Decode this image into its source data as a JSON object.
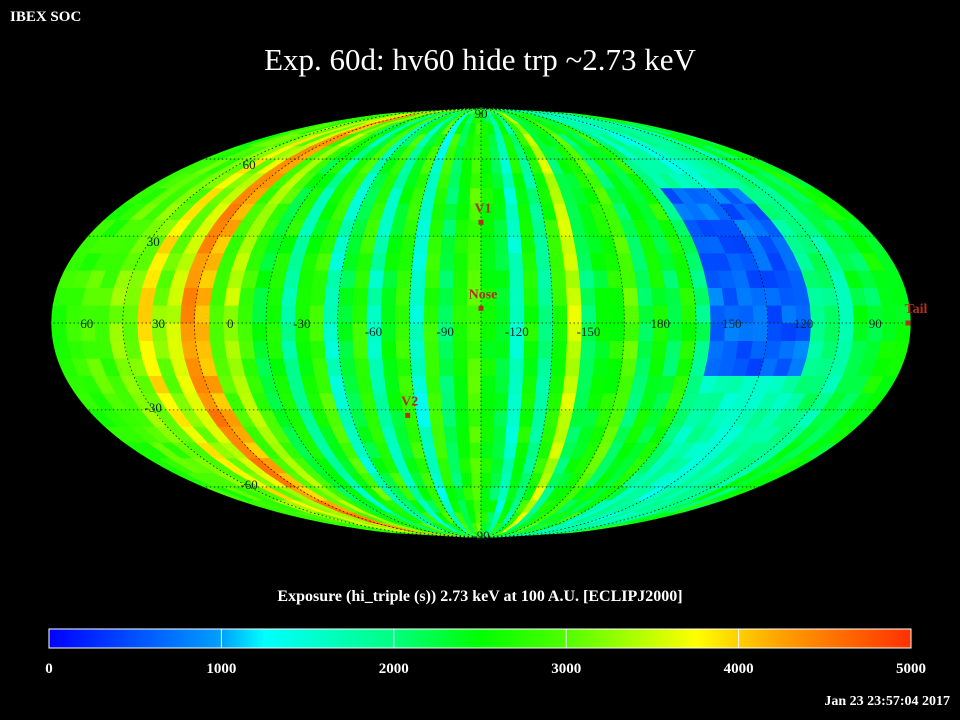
{
  "header": {
    "org": "IBEX SOC"
  },
  "chart_data": {
    "type": "heatmap",
    "projection": "Mollweide (ecliptic, center longitude 255, longitude increasing to the left)",
    "title": "Exp.   60d: hv60 hide trp ~2.73 keV",
    "colorbar_label": "Exposure (hi_triple (s))  2.73 keV at 100 A.U. [ECLIPJ2000]",
    "value_range": [
      0,
      5000
    ],
    "colorbar_ticks": [
      "0",
      "1000",
      "2000",
      "3000",
      "4000",
      "5000"
    ],
    "longitude_labels": [
      {
        "lon": 60,
        "text": "60"
      },
      {
        "lon": 30,
        "text": "30"
      },
      {
        "lon": 0,
        "text": "0"
      },
      {
        "lon": 330,
        "text": "-30"
      },
      {
        "lon": 300,
        "text": "-60"
      },
      {
        "lon": 270,
        "text": "-90"
      },
      {
        "lon": 240,
        "text": "-120"
      },
      {
        "lon": 210,
        "text": "-150"
      },
      {
        "lon": 180,
        "text": "180"
      },
      {
        "lon": 150,
        "text": "150"
      },
      {
        "lon": 120,
        "text": "120"
      },
      {
        "lon": 90,
        "text": "90"
      }
    ],
    "latitude_labels": [
      {
        "lat": 90,
        "text": "90"
      },
      {
        "lat": 60,
        "text": "60"
      },
      {
        "lat": 30,
        "text": "30"
      },
      {
        "lat": -30,
        "text": "-30"
      },
      {
        "lat": -60,
        "text": "-60"
      },
      {
        "lat": -90,
        "text": "-90"
      }
    ],
    "markers": [
      {
        "name": "V1",
        "lon": 255,
        "lat": 35
      },
      {
        "name": "Nose",
        "lon": 255,
        "lat": 5
      },
      {
        "name": "V2",
        "lon": 289,
        "lat": -32
      },
      {
        "name": "Tail",
        "lon": 75,
        "lat": 5
      }
    ],
    "exposure_strips_by_longitude": [
      {
        "lon": 258,
        "value": 2950
      },
      {
        "lon": 264,
        "value": 2600
      },
      {
        "lon": 270,
        "value": 2150
      },
      {
        "lon": 276,
        "value": 2750
      },
      {
        "lon": 282,
        "value": 1500
      },
      {
        "lon": 288,
        "value": 2850
      },
      {
        "lon": 294,
        "value": 2400
      },
      {
        "lon": 300,
        "value": 1700
      },
      {
        "lon": 306,
        "value": 2800
      },
      {
        "lon": 312,
        "value": 2300
      },
      {
        "lon": 318,
        "value": 1600
      },
      {
        "lon": 324,
        "value": 2900
      },
      {
        "lon": 330,
        "value": 2500
      },
      {
        "lon": 336,
        "value": 1800
      },
      {
        "lon": 342,
        "value": 2650
      },
      {
        "lon": 348,
        "value": 2350
      },
      {
        "lon": 354,
        "value": 2900
      },
      {
        "lon": 0,
        "value": 3400
      },
      {
        "lon": 6,
        "value": 2950
      },
      {
        "lon": 12,
        "value": 4150
      },
      {
        "lon": 18,
        "value": 4400
      },
      {
        "lon": 24,
        "value": 3500
      },
      {
        "lon": 30,
        "value": 3150
      },
      {
        "lon": 36,
        "value": 3850
      },
      {
        "lon": 42,
        "value": 3100
      },
      {
        "lon": 48,
        "value": 3200
      },
      {
        "lon": 54,
        "value": 2900
      },
      {
        "lon": 60,
        "value": 3000
      },
      {
        "lon": 66,
        "value": 2800
      },
      {
        "lon": 72,
        "value": 2750
      },
      {
        "lon": 78,
        "value": 2450
      },
      {
        "lon": 84,
        "value": 2550
      },
      {
        "lon": 90,
        "value": 2200
      },
      {
        "lon": 96,
        "value": 2350
      },
      {
        "lon": 102,
        "value": 1800
      },
      {
        "lon": 108,
        "value": 2050
      },
      {
        "lon": 114,
        "value": 1900
      },
      {
        "lon": 120,
        "value": 1700
      },
      {
        "lon": 126,
        "value": 1750
      },
      {
        "lon": 132,
        "value": 1600
      },
      {
        "lon": 138,
        "value": 1550
      },
      {
        "lon": 144,
        "value": 1650
      },
      {
        "lon": 150,
        "value": 1850
      },
      {
        "lon": 156,
        "value": 1700
      },
      {
        "lon": 162,
        "value": 2050
      },
      {
        "lon": 168,
        "value": 2700
      },
      {
        "lon": 174,
        "value": 2200
      },
      {
        "lon": 180,
        "value": 2500
      },
      {
        "lon": 186,
        "value": 2150
      },
      {
        "lon": 192,
        "value": 3000
      },
      {
        "lon": 198,
        "value": 2600
      },
      {
        "lon": 204,
        "value": 2400
      },
      {
        "lon": 210,
        "value": 2100
      },
      {
        "lon": 216,
        "value": 3500
      },
      {
        "lon": 222,
        "value": 2700
      },
      {
        "lon": 228,
        "value": 1900
      },
      {
        "lon": 234,
        "value": 2600
      },
      {
        "lon": 240,
        "value": 1600
      },
      {
        "lon": 246,
        "value": 2300
      },
      {
        "lon": 252,
        "value": 2550
      }
    ],
    "low_exposure_region": {
      "lon_range": [
        120,
        160
      ],
      "lat_range": [
        -20,
        45
      ],
      "value": 400
    }
  },
  "footer": {
    "timestamp": "Jan 23 23:57:04 2017"
  }
}
